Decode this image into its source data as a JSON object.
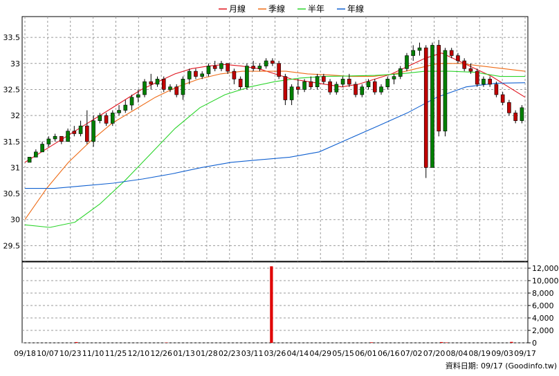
{
  "legend": [
    {
      "name": "月線",
      "color": "#e0141e"
    },
    {
      "name": "季線",
      "color": "#ee6a14"
    },
    {
      "name": "半年",
      "color": "#2ad42a"
    },
    {
      "name": "年線",
      "color": "#1060d0"
    }
  ],
  "footer_text": "資料日期: 09/17 (Goodinfo.tw)",
  "chart_data": [
    {
      "type": "candlestick",
      "title": "",
      "x_ticks": [
        "09/18",
        "10/07",
        "10/23",
        "11/10",
        "11/25",
        "12/10",
        "12/26",
        "01/13",
        "01/28",
        "02/23",
        "03/11",
        "03/26",
        "04/14",
        "04/29",
        "05/15",
        "06/01",
        "06/16",
        "07/02",
        "07/20",
        "08/04",
        "08/19",
        "09/03",
        "09/17"
      ],
      "y_ticks": [
        "29.5",
        "30",
        "30.5",
        "31",
        "31.5",
        "32",
        "32.5",
        "33",
        "33.5"
      ],
      "ylim": [
        29.2,
        33.9
      ],
      "grid": true,
      "up_color": "#008000",
      "down_color": "#c00000",
      "ohlc": [
        [
          31.1,
          31.2,
          31.1,
          31.2
        ],
        [
          31.2,
          31.35,
          31.2,
          31.3
        ],
        [
          31.3,
          31.5,
          31.3,
          31.45
        ],
        [
          31.45,
          31.6,
          31.4,
          31.55
        ],
        [
          31.55,
          31.65,
          31.5,
          31.6
        ],
        [
          31.6,
          31.6,
          31.45,
          31.5
        ],
        [
          31.5,
          31.75,
          31.5,
          31.7
        ],
        [
          31.7,
          31.8,
          31.6,
          31.65
        ],
        [
          31.65,
          31.9,
          31.6,
          31.8
        ],
        [
          31.8,
          32.1,
          31.45,
          31.5
        ],
        [
          31.5,
          32.0,
          31.4,
          31.9
        ],
        [
          31.9,
          32.05,
          31.85,
          32.0
        ],
        [
          32.0,
          32.05,
          31.8,
          31.85
        ],
        [
          31.85,
          32.1,
          31.8,
          32.05
        ],
        [
          32.05,
          32.2,
          32.0,
          32.1
        ],
        [
          32.1,
          32.3,
          32.05,
          32.2
        ],
        [
          32.2,
          32.4,
          32.1,
          32.35
        ],
        [
          32.35,
          32.5,
          32.25,
          32.4
        ],
        [
          32.4,
          32.7,
          32.35,
          32.65
        ],
        [
          32.65,
          32.8,
          32.5,
          32.6
        ],
        [
          32.6,
          32.75,
          32.55,
          32.7
        ],
        [
          32.7,
          32.75,
          32.45,
          32.5
        ],
        [
          32.5,
          32.6,
          32.45,
          32.55
        ],
        [
          32.55,
          32.6,
          32.35,
          32.4
        ],
        [
          32.4,
          32.75,
          32.3,
          32.7
        ],
        [
          32.7,
          32.9,
          32.6,
          32.85
        ],
        [
          32.85,
          32.9,
          32.7,
          32.75
        ],
        [
          32.75,
          32.85,
          32.7,
          32.8
        ],
        [
          32.8,
          33.0,
          32.75,
          32.95
        ],
        [
          32.95,
          33.05,
          32.85,
          32.9
        ],
        [
          32.9,
          33.05,
          32.85,
          33.0
        ],
        [
          33.0,
          33.0,
          32.8,
          32.85
        ],
        [
          32.85,
          32.9,
          32.6,
          32.7
        ],
        [
          32.7,
          32.75,
          32.5,
          32.55
        ],
        [
          32.55,
          33.0,
          32.5,
          32.95
        ],
        [
          32.95,
          33.05,
          32.85,
          32.9
        ],
        [
          32.9,
          33.0,
          32.85,
          32.95
        ],
        [
          32.95,
          33.1,
          32.9,
          33.05
        ],
        [
          33.05,
          33.1,
          32.95,
          33.0
        ],
        [
          33.0,
          33.05,
          32.7,
          32.75
        ],
        [
          32.75,
          32.8,
          32.2,
          32.3
        ],
        [
          32.3,
          32.6,
          32.2,
          32.55
        ],
        [
          32.55,
          32.7,
          32.4,
          32.5
        ],
        [
          32.5,
          32.7,
          32.45,
          32.65
        ],
        [
          32.65,
          32.75,
          32.5,
          32.55
        ],
        [
          32.55,
          32.8,
          32.5,
          32.75
        ],
        [
          32.75,
          32.8,
          32.6,
          32.65
        ],
        [
          32.65,
          32.7,
          32.4,
          32.45
        ],
        [
          32.45,
          32.65,
          32.4,
          32.6
        ],
        [
          32.6,
          32.75,
          32.55,
          32.7
        ],
        [
          32.7,
          32.8,
          32.55,
          32.6
        ],
        [
          32.6,
          32.65,
          32.35,
          32.4
        ],
        [
          32.4,
          32.6,
          32.35,
          32.55
        ],
        [
          32.55,
          32.7,
          32.5,
          32.65
        ],
        [
          32.65,
          32.7,
          32.4,
          32.45
        ],
        [
          32.45,
          32.6,
          32.4,
          32.55
        ],
        [
          32.55,
          32.75,
          32.5,
          32.7
        ],
        [
          32.7,
          32.8,
          32.6,
          32.75
        ],
        [
          32.75,
          32.95,
          32.7,
          32.9
        ],
        [
          32.9,
          33.2,
          32.85,
          33.15
        ],
        [
          33.15,
          33.35,
          33.05,
          33.25
        ],
        [
          33.25,
          33.4,
          33.15,
          33.3
        ],
        [
          33.3,
          33.35,
          30.8,
          31.0
        ],
        [
          31.0,
          33.4,
          31.0,
          33.35
        ],
        [
          33.35,
          33.45,
          31.6,
          31.7
        ],
        [
          31.7,
          33.3,
          31.6,
          33.25
        ],
        [
          33.25,
          33.3,
          33.1,
          33.15
        ],
        [
          33.15,
          33.2,
          33.0,
          33.05
        ],
        [
          33.05,
          33.1,
          32.85,
          32.9
        ],
        [
          32.9,
          33.0,
          32.8,
          32.85
        ],
        [
          32.85,
          32.9,
          32.55,
          32.6
        ],
        [
          32.6,
          32.75,
          32.55,
          32.7
        ],
        [
          32.7,
          32.75,
          32.55,
          32.6
        ],
        [
          32.6,
          32.65,
          32.35,
          32.4
        ],
        [
          32.4,
          32.45,
          32.2,
          32.25
        ],
        [
          32.25,
          32.3,
          32.0,
          32.05
        ],
        [
          32.05,
          32.1,
          31.85,
          31.9
        ],
        [
          31.9,
          32.2,
          31.85,
          32.15
        ]
      ],
      "series": [
        {
          "name": "月線",
          "values": [
            31.1,
            31.3,
            31.5,
            31.7,
            31.9,
            32.1,
            32.3,
            32.5,
            32.65,
            32.8,
            32.9,
            32.95,
            32.98,
            32.95,
            32.9,
            32.8,
            32.7,
            32.65,
            32.6,
            32.55,
            32.6,
            32.7,
            32.8,
            32.95,
            33.1,
            33.2,
            33.05,
            32.9,
            32.75,
            32.55,
            32.35
          ]
        },
        {
          "name": "季線",
          "values": [
            30.0,
            30.6,
            31.1,
            31.5,
            31.85,
            32.1,
            32.35,
            32.55,
            32.7,
            32.8,
            32.85,
            32.85,
            32.85,
            32.8,
            32.78,
            32.75,
            32.75,
            32.8,
            32.9,
            33.0,
            33.0,
            32.95,
            32.9,
            32.85
          ]
        },
        {
          "name": "半年",
          "values": [
            29.9,
            29.85,
            29.95,
            30.3,
            30.75,
            31.25,
            31.75,
            32.15,
            32.4,
            32.55,
            32.65,
            32.72,
            32.75,
            32.76,
            32.77,
            32.8,
            32.85,
            32.85,
            32.83,
            32.75,
            32.75
          ]
        },
        {
          "name": "年線",
          "values": [
            30.6,
            30.6,
            30.65,
            30.7,
            30.78,
            30.88,
            31.0,
            31.1,
            31.15,
            31.2,
            31.3,
            31.55,
            31.8,
            32.05,
            32.35,
            32.55,
            32.62,
            32.63
          ]
        }
      ]
    },
    {
      "type": "bar",
      "title": "",
      "y_ticks": [
        "0",
        "2,000",
        "4,000",
        "6,000",
        "8,000",
        "10,000",
        "12,000"
      ],
      "ylim": [
        0,
        13000
      ],
      "color": "#e00000",
      "values": [
        0,
        0,
        0,
        0,
        0,
        0,
        0,
        0,
        0,
        0,
        120,
        0,
        0,
        0,
        0,
        0,
        0,
        0,
        0,
        0,
        0,
        0,
        0,
        0,
        0,
        0,
        0,
        0,
        50,
        0,
        0,
        0,
        0,
        0,
        0,
        0,
        0,
        0,
        0,
        0,
        0,
        0,
        0,
        0,
        0,
        0,
        0,
        0,
        0,
        12300,
        0,
        0,
        0,
        0,
        0,
        0,
        0,
        0,
        0,
        0,
        0,
        0,
        0,
        0,
        0,
        0,
        0,
        0,
        0,
        80,
        0,
        0,
        0,
        0,
        0,
        0,
        0,
        0,
        0,
        0,
        0,
        0,
        0,
        120,
        60,
        0,
        0,
        0,
        0,
        0,
        0,
        0,
        0,
        0,
        0,
        0,
        0,
        150,
        0,
        0
      ]
    }
  ]
}
